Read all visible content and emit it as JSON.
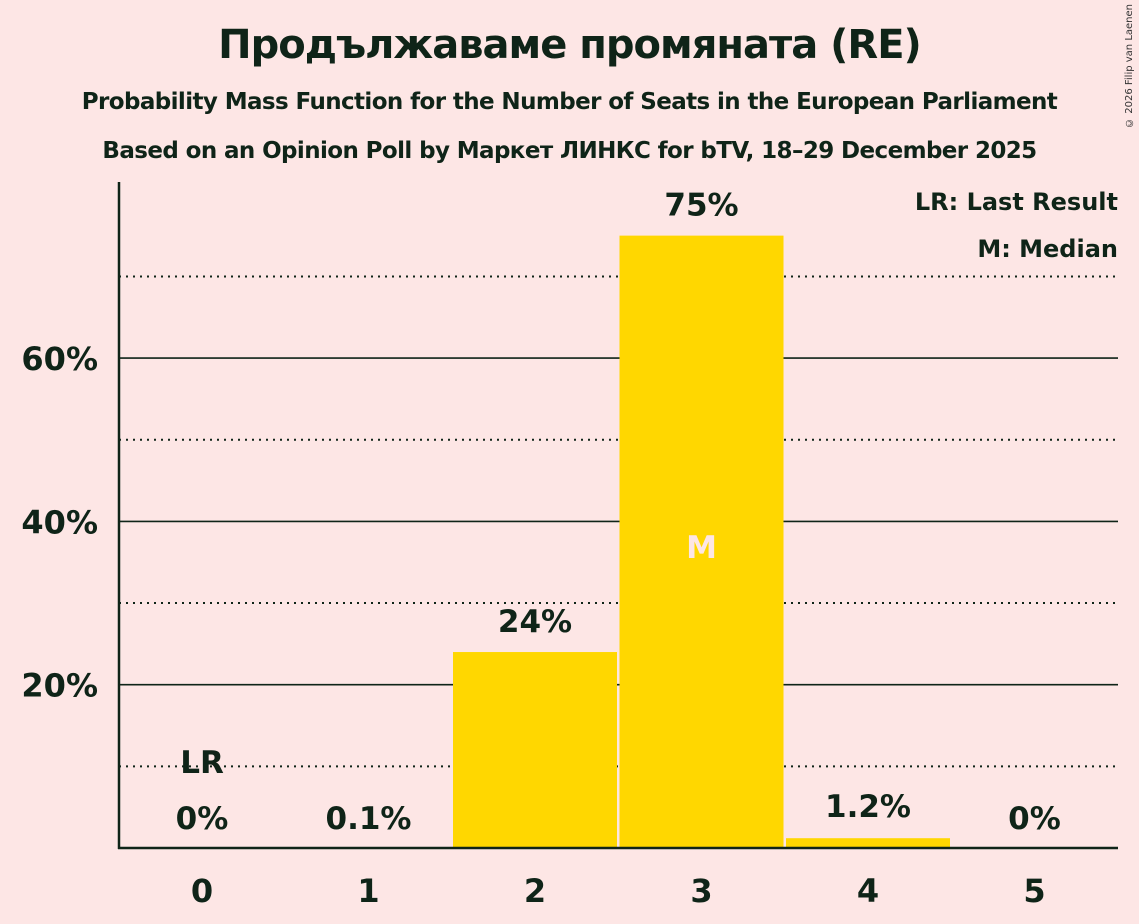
{
  "header": {
    "title": "Продължаваме промяната (RE)",
    "subtitle": "Probability Mass Function for the Number of Seats in the European Parliament",
    "source": "Based on an Opinion Poll by Маркет ЛИНКС for bTV, 18–29 December 2025",
    "copyright": "© 2026 Filip van Laenen"
  },
  "legend": {
    "lr": "LR: Last Result",
    "m": "M: Median"
  },
  "colors": {
    "background": "#fde6e5",
    "bar": "#ffd700",
    "text": "#0f2418",
    "median_label": "#fde6e5"
  },
  "chart_data": {
    "type": "bar",
    "title": "Продължаваме промяната (RE)",
    "subtitle": "Probability Mass Function for the Number of Seats in the European Parliament",
    "xlabel": "",
    "ylabel": "",
    "categories": [
      "0",
      "1",
      "2",
      "3",
      "4",
      "5"
    ],
    "values": [
      0,
      0.1,
      24,
      75,
      1.2,
      0
    ],
    "value_labels": [
      "0%",
      "0.1%",
      "24%",
      "75%",
      "1.2%",
      "0%"
    ],
    "ylim": [
      0,
      80
    ],
    "yticks": [
      "20%",
      "40%",
      "60%"
    ],
    "ytick_values": [
      20,
      40,
      60
    ],
    "minor_gridlines": [
      10,
      30,
      50,
      70
    ],
    "annotations": [
      {
        "category": "0",
        "label": "LR",
        "meaning": "Last Result"
      },
      {
        "category": "3",
        "label": "M",
        "meaning": "Median"
      }
    ],
    "legend_position": "top-right",
    "grid": true
  }
}
